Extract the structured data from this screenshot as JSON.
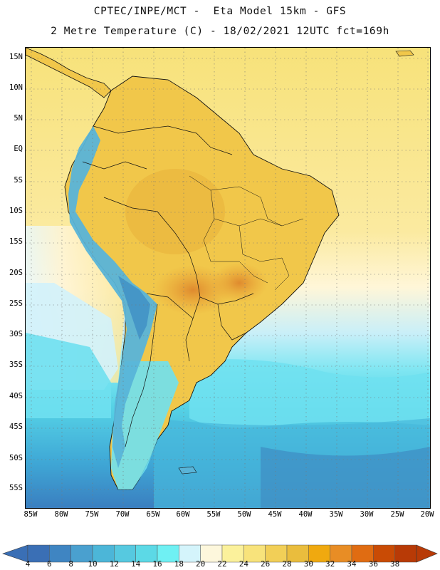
{
  "header": {
    "line1": "CPTEC/INPE/MCT -  Eta Model 15km - GFS",
    "line2": "2 Metre Temperature (C) - 18/02/2021 12UTC fct=169h"
  },
  "map": {
    "lat_labels": [
      "15N",
      "10N",
      "5N",
      "EQ",
      "5S",
      "10S",
      "15S",
      "20S",
      "25S",
      "30S",
      "35S",
      "40S",
      "45S",
      "50S",
      "55S"
    ],
    "lon_labels": [
      "85W",
      "80W",
      "75W",
      "70W",
      "65W",
      "60W",
      "55W",
      "50W",
      "45W",
      "40W",
      "35W",
      "30W",
      "25W",
      "20W"
    ],
    "colors": {
      "sea_warm": "#f7e27a",
      "land_warm": "#f1c74a",
      "land_hot": "#e9a235",
      "land_very_hot": "#df8a2e",
      "sea_mild": "#fff6d8",
      "sea_cool": "#d2f2fb",
      "sea_cold": "#6fe0f0",
      "andes": "#59b4d8",
      "ocean_deep": "#3f8fc4"
    }
  },
  "colorbar": {
    "labels": [
      "4",
      "6",
      "8",
      "10",
      "12",
      "14",
      "16",
      "18",
      "20",
      "22",
      "24",
      "26",
      "28",
      "30",
      "32",
      "34",
      "36",
      "38"
    ],
    "colors": [
      "#3a6fb5",
      "#3f85c2",
      "#4aa0cf",
      "#4cb6d8",
      "#56c9e0",
      "#5cd9e6",
      "#6ff0f3",
      "#d4f4fb",
      "#fdf7dc",
      "#fbf19b",
      "#f8e37b",
      "#f2cf57",
      "#eabd3d",
      "#f0a90f",
      "#e88d25",
      "#e06c12",
      "#c94b05",
      "#b83a06"
    ],
    "arrow_left": "#3a6fb5",
    "arrow_right": "#b83a06"
  }
}
